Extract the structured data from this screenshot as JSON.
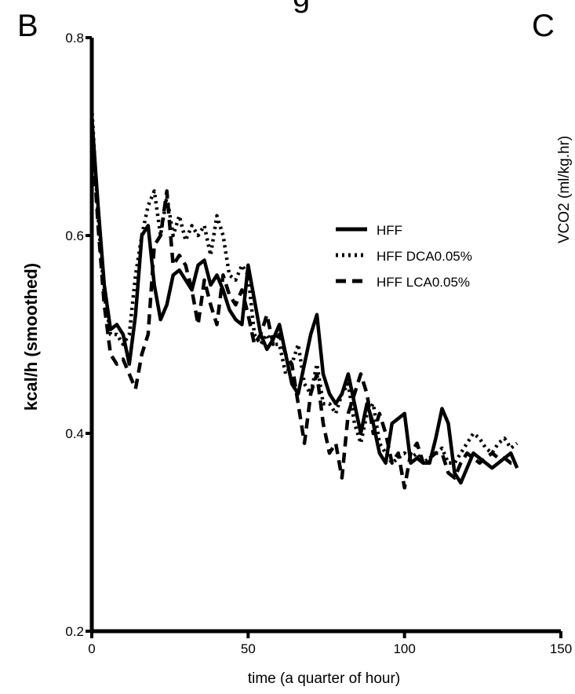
{
  "panel_letter": "B",
  "next_panel_letter": "C",
  "top_fragment": "g",
  "side_axis_label": "VCO2 (ml/kg.hr)",
  "chart_data": {
    "type": "line",
    "title": "",
    "xlabel": "time (a quarter of hour)",
    "ylabel": "kcal/h (smoothed)",
    "xlim": [
      0,
      150
    ],
    "ylim": [
      0.2,
      0.8
    ],
    "x_ticks": [
      "0",
      "50",
      "100",
      "150"
    ],
    "y_ticks": [
      "0.2",
      "0.4",
      "0.6",
      "0.8"
    ],
    "grid": false,
    "legend_position": "top-right",
    "series": [
      {
        "name": "HFF",
        "style": "solid",
        "x": [
          0,
          2,
          4,
          6,
          8,
          10,
          12,
          14,
          16,
          18,
          20,
          22,
          24,
          26,
          28,
          30,
          32,
          34,
          36,
          38,
          40,
          42,
          44,
          46,
          48,
          50,
          52,
          54,
          56,
          58,
          60,
          62,
          64,
          66,
          68,
          70,
          72,
          74,
          76,
          78,
          80,
          82,
          84,
          86,
          88,
          90,
          92,
          94,
          96,
          98,
          100,
          102,
          104,
          106,
          108,
          110,
          112,
          114,
          116,
          118,
          120,
          122,
          124,
          126,
          128,
          130,
          132,
          134,
          136
        ],
        "values": [
          0.72,
          0.63,
          0.55,
          0.505,
          0.51,
          0.5,
          0.47,
          0.52,
          0.6,
          0.61,
          0.55,
          0.515,
          0.53,
          0.56,
          0.565,
          0.555,
          0.545,
          0.57,
          0.575,
          0.55,
          0.56,
          0.545,
          0.525,
          0.515,
          0.51,
          0.57,
          0.535,
          0.5,
          0.485,
          0.495,
          0.51,
          0.48,
          0.45,
          0.44,
          0.47,
          0.5,
          0.52,
          0.46,
          0.44,
          0.43,
          0.44,
          0.46,
          0.43,
          0.4,
          0.43,
          0.41,
          0.38,
          0.37,
          0.41,
          0.415,
          0.42,
          0.37,
          0.375,
          0.37,
          0.37,
          0.395,
          0.425,
          0.41,
          0.36,
          0.35,
          0.365,
          0.38,
          0.375,
          0.37,
          0.365,
          0.37,
          0.375,
          0.38,
          0.365
        ]
      },
      {
        "name": "HFF DCA0.05%",
        "style": "dotted",
        "x": [
          0,
          2,
          4,
          6,
          8,
          10,
          12,
          14,
          16,
          18,
          20,
          22,
          24,
          26,
          28,
          30,
          32,
          34,
          36,
          38,
          40,
          42,
          44,
          46,
          48,
          50,
          52,
          54,
          56,
          58,
          60,
          62,
          64,
          66,
          68,
          70,
          72,
          74,
          76,
          78,
          80,
          82,
          84,
          86,
          88,
          90,
          92,
          94,
          96,
          98,
          100,
          102,
          104,
          106,
          108,
          110,
          112,
          114,
          116,
          118,
          120,
          122,
          124,
          126,
          128,
          130,
          132,
          134,
          136
        ],
        "values": [
          0.73,
          0.62,
          0.54,
          0.5,
          0.5,
          0.49,
          0.5,
          0.56,
          0.6,
          0.63,
          0.645,
          0.6,
          0.64,
          0.6,
          0.62,
          0.595,
          0.61,
          0.6,
          0.61,
          0.58,
          0.62,
          0.6,
          0.56,
          0.555,
          0.57,
          0.56,
          0.5,
          0.49,
          0.5,
          0.49,
          0.49,
          0.46,
          0.47,
          0.49,
          0.45,
          0.44,
          0.47,
          0.43,
          0.43,
          0.42,
          0.44,
          0.45,
          0.41,
          0.39,
          0.42,
          0.43,
          0.39,
          0.38,
          0.37,
          0.375,
          0.38,
          0.375,
          0.38,
          0.37,
          0.375,
          0.38,
          0.385,
          0.37,
          0.37,
          0.38,
          0.39,
          0.4,
          0.395,
          0.385,
          0.38,
          0.39,
          0.395,
          0.385,
          0.39
        ]
      },
      {
        "name": "HFF LCA0.05%",
        "style": "dashed",
        "x": [
          0,
          2,
          4,
          6,
          8,
          10,
          12,
          14,
          16,
          18,
          20,
          22,
          24,
          26,
          28,
          30,
          32,
          34,
          36,
          38,
          40,
          42,
          44,
          46,
          48,
          50,
          52,
          54,
          56,
          58,
          60,
          62,
          64,
          66,
          68,
          70,
          72,
          74,
          76,
          78,
          80,
          82,
          84,
          86,
          88,
          90,
          92,
          94,
          96,
          98,
          100,
          102,
          104,
          106,
          108,
          110,
          112,
          114,
          116,
          118,
          120,
          122,
          124,
          126,
          128,
          130,
          132,
          134,
          136
        ],
        "values": [
          0.71,
          0.61,
          0.53,
          0.48,
          0.47,
          0.475,
          0.46,
          0.445,
          0.48,
          0.5,
          0.59,
          0.6,
          0.645,
          0.57,
          0.58,
          0.57,
          0.545,
          0.51,
          0.555,
          0.53,
          0.51,
          0.56,
          0.54,
          0.53,
          0.545,
          0.52,
          0.49,
          0.5,
          0.52,
          0.49,
          0.5,
          0.48,
          0.47,
          0.43,
          0.39,
          0.44,
          0.46,
          0.41,
          0.38,
          0.39,
          0.355,
          0.42,
          0.44,
          0.46,
          0.44,
          0.4,
          0.42,
          0.4,
          0.37,
          0.38,
          0.345,
          0.38,
          0.39,
          0.37,
          0.375,
          0.38,
          0.38,
          0.36,
          0.355,
          0.37,
          0.38,
          0.375,
          0.37,
          0.375,
          0.38,
          0.375,
          0.375,
          0.37,
          0.37
        ]
      }
    ]
  }
}
